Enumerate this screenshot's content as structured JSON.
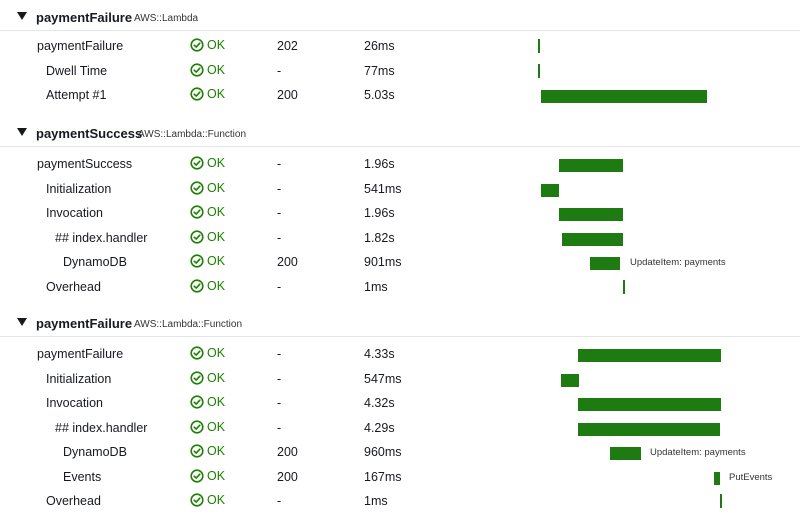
{
  "status_label": "OK",
  "groups": [
    {
      "name": "paymentFailure",
      "type": "AWS::Lambda",
      "rows": [
        {
          "name": "paymentFailure",
          "code": "202",
          "duration": "26ms",
          "indent": 0,
          "ann": ""
        },
        {
          "name": "Dwell Time",
          "code": "-",
          "duration": "77ms",
          "indent": 1,
          "ann": ""
        },
        {
          "name": "Attempt #1",
          "code": "200",
          "duration": "5.03s",
          "indent": 1,
          "ann": ""
        }
      ]
    },
    {
      "name": "paymentSuccess",
      "type": "AWS::Lambda::Function",
      "rows": [
        {
          "name": "paymentSuccess",
          "code": "-",
          "duration": "1.96s",
          "indent": 0,
          "ann": ""
        },
        {
          "name": "Initialization",
          "code": "-",
          "duration": "541ms",
          "indent": 1,
          "ann": ""
        },
        {
          "name": "Invocation",
          "code": "-",
          "duration": "1.96s",
          "indent": 1,
          "ann": ""
        },
        {
          "name": "## index.handler",
          "code": "-",
          "duration": "1.82s",
          "indent": 2,
          "ann": ""
        },
        {
          "name": "DynamoDB",
          "code": "200",
          "duration": "901ms",
          "indent": 3,
          "ann": "UpdateItem: payments"
        },
        {
          "name": "Overhead",
          "code": "-",
          "duration": "1ms",
          "indent": 1,
          "ann": ""
        }
      ]
    },
    {
      "name": "paymentFailure",
      "type": "AWS::Lambda::Function",
      "rows": [
        {
          "name": "paymentFailure",
          "code": "-",
          "duration": "4.33s",
          "indent": 0,
          "ann": ""
        },
        {
          "name": "Initialization",
          "code": "-",
          "duration": "547ms",
          "indent": 1,
          "ann": ""
        },
        {
          "name": "Invocation",
          "code": "-",
          "duration": "4.32s",
          "indent": 1,
          "ann": ""
        },
        {
          "name": "## index.handler",
          "code": "-",
          "duration": "4.29s",
          "indent": 2,
          "ann": ""
        },
        {
          "name": "DynamoDB",
          "code": "200",
          "duration": "960ms",
          "indent": 3,
          "ann": "UpdateItem: payments"
        },
        {
          "name": "Events",
          "code": "200",
          "duration": "167ms",
          "indent": 3,
          "ann": "PutEvents"
        },
        {
          "name": "Overhead",
          "code": "-",
          "duration": "1ms",
          "indent": 1,
          "ann": ""
        }
      ]
    }
  ]
}
